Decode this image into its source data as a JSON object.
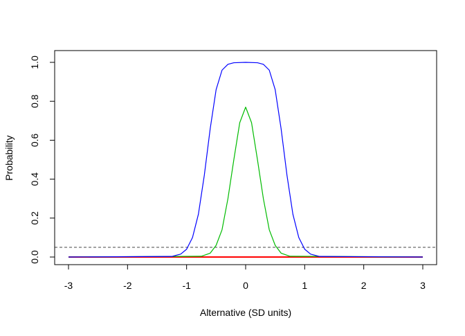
{
  "chart_data": {
    "type": "line",
    "title": "",
    "xlabel": "Alternative (SD units)",
    "ylabel": "Probability",
    "xlim": [
      -3,
      3
    ],
    "ylim": [
      0,
      1
    ],
    "x_ticks": [
      -3,
      -2,
      -1,
      0,
      1,
      2,
      3
    ],
    "x_tick_labels": [
      "-3",
      "-2",
      "-1",
      "0",
      "1",
      "2",
      "3"
    ],
    "y_ticks": [
      0,
      0.2,
      0.4,
      0.6,
      0.8,
      1
    ],
    "y_tick_labels": [
      "0.0",
      "0.2",
      "0.4",
      "0.6",
      "0.8",
      "1.0"
    ],
    "grid": false,
    "legend": "none",
    "reference_line": {
      "y": 0.05,
      "style": "dashed",
      "color": "#444444"
    },
    "series": [
      {
        "color": "#ff0000",
        "x": [
          -3,
          -0.5,
          0,
          0.5,
          3
        ],
        "y": [
          0,
          0,
          0,
          0,
          0
        ]
      },
      {
        "color": "#00bb00",
        "x": [
          -3,
          -0.75,
          -0.6,
          -0.5,
          -0.4,
          -0.3,
          -0.2,
          -0.1,
          0,
          0.1,
          0.2,
          0.3,
          0.4,
          0.5,
          0.6,
          0.75,
          3
        ],
        "y": [
          0,
          0.004,
          0.02,
          0.06,
          0.14,
          0.3,
          0.5,
          0.69,
          0.77,
          0.69,
          0.5,
          0.3,
          0.14,
          0.06,
          0.02,
          0.004,
          0
        ]
      },
      {
        "color": "#0000ff",
        "x": [
          -3,
          -1.25,
          -1.1,
          -1.0,
          -0.9,
          -0.8,
          -0.7,
          -0.6,
          -0.5,
          -0.4,
          -0.3,
          -0.2,
          0,
          0.2,
          0.3,
          0.4,
          0.5,
          0.6,
          0.7,
          0.8,
          0.9,
          1.0,
          1.1,
          1.25,
          3
        ],
        "y": [
          0,
          0.003,
          0.015,
          0.04,
          0.1,
          0.22,
          0.42,
          0.66,
          0.86,
          0.96,
          0.99,
          0.998,
          1.0,
          0.998,
          0.99,
          0.96,
          0.86,
          0.66,
          0.42,
          0.22,
          0.1,
          0.04,
          0.015,
          0.003,
          0
        ]
      }
    ]
  }
}
